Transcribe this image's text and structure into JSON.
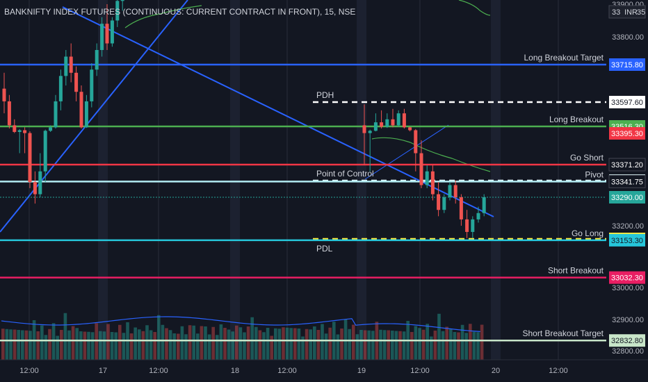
{
  "title": "BANKNIFTY INDEX FUTURES (CONTINUOUS: CURRENT CONTRACT IN FRONT), 15, NSE",
  "currency": "INR",
  "colors": {
    "background": "#131722",
    "up": "#26a69a",
    "down": "#ef5350",
    "grid": "#2a2e39",
    "text": "#b2b5be"
  },
  "chart_data": {
    "type": "candlestick",
    "y_axis": {
      "ticks": [
        33900,
        33800,
        33200,
        33000,
        32900,
        32800
      ],
      "tick_labels": [
        "33900.00",
        "33800.00",
        "33200.00",
        "33000.00",
        "32900.00",
        "32800.00"
      ],
      "range": [
        32790,
        33945
      ]
    },
    "x_axis": {
      "labels": [
        "12:00",
        "17",
        "12:00",
        "18",
        "12:00",
        "19",
        "12:00",
        "20",
        "12:00"
      ]
    },
    "levels": [
      {
        "name": "Long Breakout Target",
        "value": 33715.8,
        "badge": "33715.80",
        "color": "#2962ff",
        "style": "solid",
        "badge_bg": "#2962ff",
        "badge_fg": "#ffffff"
      },
      {
        "name": "PDH",
        "value": 33597.6,
        "badge": "33597.60",
        "color": "#ffffff",
        "style": "dashed",
        "badge_bg": "#ffffff",
        "badge_fg": "#131722"
      },
      {
        "name": "Long Breakout",
        "value": 33516.3,
        "badge": "33516.30",
        "color": "#4caf50",
        "style": "solid",
        "badge_bg": "#4caf50",
        "badge_fg": "#ffffff"
      },
      {
        "name": "",
        "value": 33395.3,
        "badge": "33395.30",
        "color": "#ef5350",
        "style": "none",
        "badge_bg": "#f23645",
        "badge_fg": "#ffffff"
      },
      {
        "name": "Go Short",
        "value": 33371.2,
        "badge": "33371.20",
        "color": "#f23645",
        "style": "solid",
        "badge_bg": "#131722",
        "badge_fg": "#ffffff"
      },
      {
        "name": "Point of Control",
        "value": 33344.75,
        "badge": "33344.75",
        "color": "#e0f7fa",
        "style": "dashed",
        "badge_bg": "#e0f7fa",
        "badge_fg": "#131722"
      },
      {
        "name": "Pivot",
        "value": 33341.75,
        "badge": "33341.75",
        "color": "#b2ebf2",
        "style": "solid",
        "badge_bg": "#131722",
        "badge_fg": "#ffffff"
      },
      {
        "name": "",
        "value": 33290.0,
        "badge": "33290.00",
        "color": "#26a69a",
        "style": "dotted",
        "badge_bg": "#26a69a",
        "badge_fg": "#ffffff"
      },
      {
        "name": "PDL",
        "value": 33157.45,
        "badge": "33157.45",
        "color": "#ffeb3b",
        "style": "dashed",
        "badge_bg": "#ffeb3b",
        "badge_fg": "#131722"
      },
      {
        "name": "Go Long",
        "value": 33153.3,
        "badge": "33153.30",
        "color": "#26c6da",
        "style": "solid",
        "badge_bg": "#26c6da",
        "badge_fg": "#131722"
      },
      {
        "name": "Short Breakout",
        "value": 33032.3,
        "badge": "33032.30",
        "color": "#e91e63",
        "style": "solid",
        "badge_bg": "#e91e63",
        "badge_fg": "#ffffff"
      },
      {
        "name": "Short Breakout Target",
        "value": 32832.8,
        "badge": "32832.80",
        "color": "#c8e6c9",
        "style": "solid",
        "badge_bg": "#c8e6c9",
        "badge_fg": "#131722"
      }
    ],
    "top_badge_fragments": [
      "33",
      "35"
    ],
    "candles_day1": [
      [
        33640,
        33690,
        33560,
        33600
      ],
      [
        33600,
        33620,
        33480,
        33520
      ],
      [
        33520,
        33540,
        33400,
        33420
      ],
      [
        33420,
        33470,
        33380,
        33450
      ],
      [
        33450,
        33500,
        33380,
        33400
      ],
      [
        33400,
        33430,
        33320,
        33340
      ],
      [
        33340,
        33360,
        33270,
        33300
      ],
      [
        33300,
        33380,
        33290,
        33360
      ],
      [
        33360,
        33460,
        33340,
        33440
      ],
      [
        33440,
        33520,
        33420,
        33500
      ],
      [
        33500,
        33620,
        33480,
        33600
      ],
      [
        33600,
        33700,
        33570,
        33680
      ],
      [
        33680,
        33760,
        33650,
        33740
      ],
      [
        33740,
        33780,
        33660,
        33690
      ],
      [
        33690,
        33710,
        33600,
        33630
      ],
      [
        33630,
        33650,
        33480,
        33500
      ],
      [
        33500,
        33620,
        33490,
        33600
      ],
      [
        33600,
        33720,
        33580,
        33700
      ],
      [
        33700,
        33780,
        33680,
        33760
      ],
      [
        33760,
        33860,
        33740,
        33840
      ],
      [
        33840,
        33900,
        33760,
        33780
      ],
      [
        33780,
        33860,
        33770,
        33850
      ],
      [
        33850,
        33930,
        33830,
        33910
      ],
      [
        33910,
        33945,
        33880,
        33935
      ]
    ],
    "candles_day3": [
      [
        33520,
        33590,
        33370,
        33400
      ],
      [
        33400,
        33460,
        33360,
        33440
      ],
      [
        33440,
        33560,
        33430,
        33530
      ],
      [
        33530,
        33570,
        33480,
        33510
      ],
      [
        33510,
        33560,
        33490,
        33540
      ],
      [
        33540,
        33575,
        33500,
        33520
      ],
      [
        33520,
        33570,
        33510,
        33560
      ],
      [
        33560,
        33575,
        33480,
        33500
      ],
      [
        33500,
        33510,
        33430,
        33450
      ],
      [
        33450,
        33470,
        33360,
        33380
      ],
      [
        33380,
        33390,
        33320,
        33330
      ],
      [
        33330,
        33370,
        33320,
        33360
      ],
      [
        33360,
        33370,
        33280,
        33300
      ],
      [
        33300,
        33340,
        33230,
        33250
      ],
      [
        33250,
        33300,
        33240,
        33290
      ],
      [
        33290,
        33340,
        33280,
        33330
      ],
      [
        33330,
        33345,
        33270,
        33290
      ],
      [
        33290,
        33300,
        33200,
        33220
      ],
      [
        33220,
        33250,
        33160,
        33180
      ],
      [
        33180,
        33230,
        33160,
        33220
      ],
      [
        33220,
        33260,
        33210,
        33240
      ],
      [
        33240,
        33300,
        33230,
        33290
      ]
    ],
    "volume_pattern": [
      0.55,
      0.45,
      0.35,
      0.5,
      0.4,
      0.3,
      0.45,
      0.35,
      0.6,
      0.4,
      0.5,
      0.35,
      0.45,
      0.55,
      0.3,
      0.4,
      0.85,
      0.45,
      0.5,
      0.35,
      0.4,
      0.3,
      0.45,
      0.35
    ]
  }
}
